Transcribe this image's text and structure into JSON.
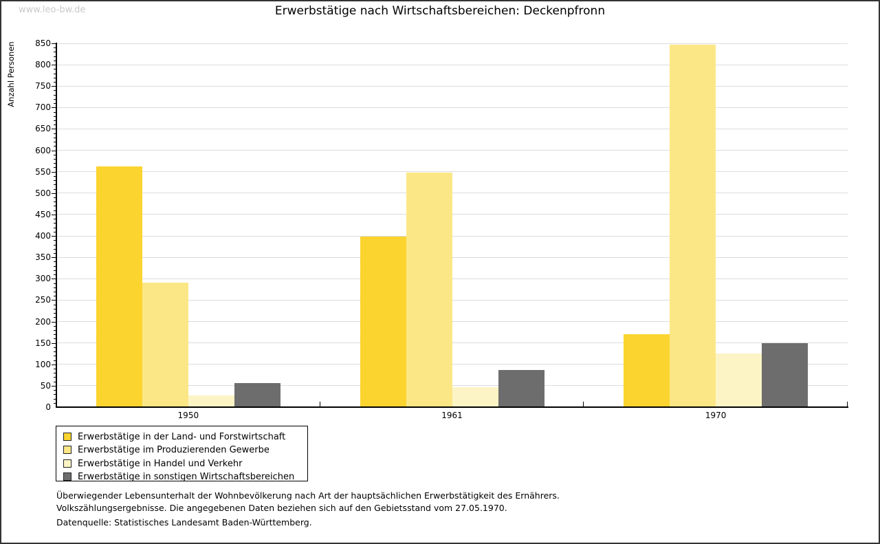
{
  "watermark": "www.leo-bw.de",
  "chart_data": {
    "type": "bar",
    "title": "Erwerbstätige nach Wirtschaftsbereichen: Deckenpfronn",
    "ylabel": "Anzahl Personen",
    "xlabel": "",
    "categories": [
      "1950",
      "1961",
      "1970"
    ],
    "series": [
      {
        "name": "Erwerbstätige in der Land- und Forstwirtschaft",
        "color": "#FBD42F",
        "values": [
          563,
          398,
          170
        ]
      },
      {
        "name": "Erwerbstätige im Produzierenden Gewerbe",
        "color": "#FCE786",
        "values": [
          291,
          548,
          846
        ]
      },
      {
        "name": "Erwerbstätige in Handel und Verkehr",
        "color": "#FCF4C5",
        "values": [
          27,
          47,
          126
        ]
      },
      {
        "name": "Erwerbstätige in sonstigen Wirtschaftsbereichen",
        "color": "#6D6D6D",
        "values": [
          57,
          87,
          150
        ]
      }
    ],
    "ylim": [
      0,
      850
    ],
    "ytick_step": 50,
    "minor_tick_step": 10,
    "grid": true,
    "legend_position": "bottom-left"
  },
  "footer": {
    "line1": "Überwiegender Lebensunterhalt der Wohnbevölkerung nach Art der hauptsächlichen Erwerbstätigkeit des Ernährers.",
    "line2": "Volkszählungsergebnisse. Die angegebenen Daten beziehen sich auf den Gebietsstand vom 27.05.1970.",
    "source": "Datenquelle: Statistisches Landesamt Baden-Württemberg."
  },
  "colors": {
    "grid": "#DCDCDC",
    "axis": "#000000",
    "watermark": "#C9C9C9",
    "frame": "#333333"
  }
}
